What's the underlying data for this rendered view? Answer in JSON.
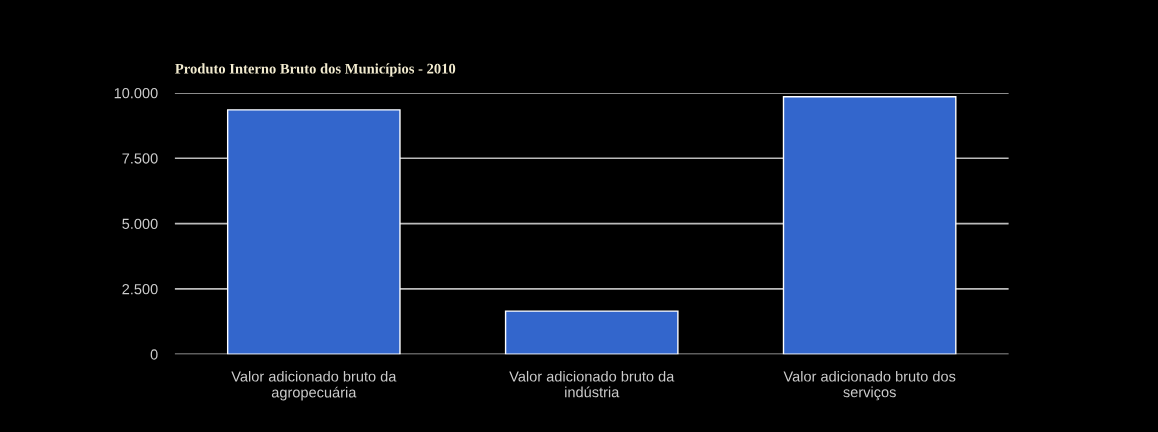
{
  "chart_data": {
    "type": "bar",
    "title": "Produto Interno Bruto dos Municípios - 2010",
    "categories": [
      "Valor adicionado bruto da\nagropecuária",
      "Valor adicionado bruto da\nindústria",
      "Valor adicionado bruto dos\nserviços"
    ],
    "values": [
      9350,
      1650,
      9850
    ],
    "color": "#3366cc",
    "ylim": [
      0,
      10000
    ],
    "yticks": [
      {
        "value": 0,
        "label": "0"
      },
      {
        "value": 2500,
        "label": "2.500"
      },
      {
        "value": 5000,
        "label": "5.000"
      },
      {
        "value": 7500,
        "label": "7.500"
      },
      {
        "value": 10000,
        "label": "10.000"
      }
    ],
    "grid": "y",
    "legend": false
  }
}
